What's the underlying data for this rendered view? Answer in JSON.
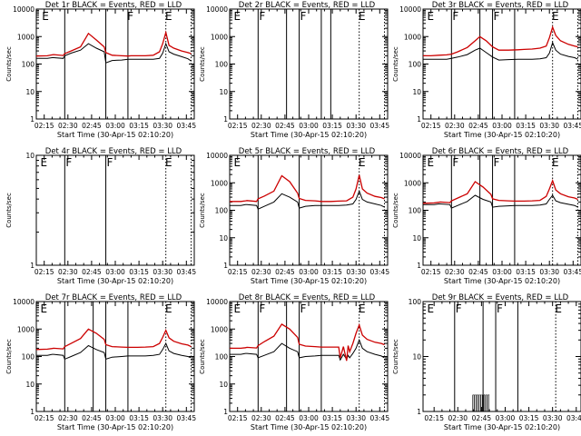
{
  "figure": {
    "background": "#ffffff",
    "grid_rows": 3,
    "grid_cols": 3
  },
  "colors": {
    "events": "#000000",
    "lld": "#cc0000",
    "axes": "#000000"
  },
  "common": {
    "ylabel": "Counts/sec",
    "x_tick_labels": [
      "02:15",
      "02:30",
      "02:45",
      "03:00",
      "03:15",
      "03:30",
      "03:45"
    ],
    "x_ticks_min": [
      15,
      30,
      45,
      60,
      75,
      90,
      105
    ],
    "xlim_min": [
      10,
      110
    ],
    "xlabel": "Start Time (30-Apr-15 02:10:20)"
  },
  "chart_data": [
    {
      "type": "line",
      "title": "Det 1r BLACK = Events, RED = LLD",
      "xlabel": "Start Time (30-Apr-15 02:10:20)",
      "ylabel": "Counts/sec",
      "yscale": "log",
      "ylim": [
        1,
        10000
      ],
      "y_tick_labels": [
        "1",
        "10",
        "100",
        "1000",
        "10000"
      ],
      "show_xlabel": false,
      "x_shift": 0,
      "solid_lines": [
        28,
        54,
        68
      ],
      "dotted_lines": [
        92,
        108
      ],
      "markers": [
        {
          "x": 13,
          "text": "E"
        },
        {
          "x": 67,
          "text": "F"
        },
        {
          "x": 91,
          "text": "E"
        }
      ],
      "series": [
        {
          "name": "Events",
          "x": [
            10,
            17,
            20,
            21,
            27,
            28,
            32,
            38,
            43,
            48,
            53,
            54,
            58,
            64,
            68,
            70,
            74,
            79,
            84,
            88,
            90,
            92,
            94,
            97,
            102,
            106,
            108
          ],
          "y": [
            160,
            160,
            170,
            170,
            160,
            200,
            250,
            320,
            550,
            380,
            280,
            110,
            135,
            140,
            150,
            150,
            150,
            150,
            150,
            160,
            250,
            550,
            280,
            230,
            185,
            155,
            130
          ]
        },
        {
          "name": "LLD",
          "x": [
            10,
            17,
            20,
            21,
            27,
            28,
            32,
            38,
            43,
            48,
            53,
            54,
            58,
            64,
            68,
            70,
            74,
            79,
            84,
            88,
            90,
            92,
            94,
            97,
            102,
            106,
            108
          ],
          "y": [
            195,
            200,
            215,
            220,
            205,
            240,
            300,
            420,
            1300,
            750,
            420,
            260,
            210,
            200,
            195,
            200,
            200,
            200,
            210,
            280,
            550,
            1400,
            480,
            380,
            300,
            260,
            240
          ]
        }
      ]
    },
    {
      "type": "line",
      "title": "Det 2r BLACK = Events, RED = LLD",
      "xlabel": "Start Time (30-Apr-15 02:10:20)",
      "ylabel": "Counts/sec",
      "yscale": "log",
      "ylim": [
        1,
        10000
      ],
      "y_tick_labels": [
        "1",
        "10",
        "100",
        "1000",
        "10000"
      ],
      "show_xlabel": false,
      "x_shift": 0,
      "solid_lines": [
        28,
        46,
        54,
        68,
        74
      ],
      "dotted_lines": [
        92,
        108
      ],
      "markers": [
        {
          "x": 12,
          "text": "E"
        },
        {
          "x": 28,
          "text": "F"
        },
        {
          "x": 54,
          "text": "F"
        },
        {
          "x": 91,
          "text": "E"
        }
      ],
      "series": []
    },
    {
      "type": "line",
      "title": "Det 3r BLACK = Events, RED = LLD",
      "xlabel": "Start Time (30-Apr-15 02:10:20)",
      "ylabel": "Counts/sec",
      "yscale": "log",
      "ylim": [
        1,
        10000
      ],
      "y_tick_labels": [
        "1",
        "10",
        "100",
        "1000",
        "10000"
      ],
      "show_xlabel": false,
      "x_shift": 0,
      "solid_lines": [
        28,
        46,
        54,
        68
      ],
      "dotted_lines": [
        92,
        108
      ],
      "markers": [
        {
          "x": 12,
          "text": "E"
        },
        {
          "x": 28,
          "text": "F"
        },
        {
          "x": 54,
          "text": "F"
        },
        {
          "x": 91,
          "text": "E"
        }
      ],
      "series": [
        {
          "name": "Events",
          "x": [
            10,
            15,
            20,
            25,
            28,
            32,
            38,
            43,
            46,
            50,
            54,
            58,
            64,
            70,
            74,
            79,
            84,
            88,
            90,
            92,
            94,
            97,
            102,
            106,
            108
          ],
          "y": [
            150,
            150,
            150,
            150,
            160,
            180,
            220,
            320,
            380,
            260,
            180,
            140,
            145,
            150,
            150,
            150,
            155,
            170,
            250,
            600,
            320,
            230,
            190,
            170,
            150
          ]
        },
        {
          "name": "LLD",
          "x": [
            10,
            15,
            20,
            25,
            28,
            32,
            38,
            43,
            46,
            50,
            54,
            58,
            64,
            70,
            74,
            79,
            84,
            88,
            90,
            92,
            94,
            97,
            102,
            106,
            108
          ],
          "y": [
            200,
            200,
            210,
            215,
            230,
            280,
            400,
            700,
            1000,
            700,
            420,
            320,
            320,
            330,
            340,
            350,
            380,
            450,
            900,
            2200,
            1100,
            700,
            520,
            450,
            420
          ]
        }
      ]
    },
    {
      "type": "line",
      "title": "Det 4r BLACK = Events, RED = LLD",
      "xlabel": "Start Time (30-Apr-15 02:10:20)",
      "ylabel": "Counts/sec",
      "yscale": "log",
      "ylim": [
        1,
        10
      ],
      "y_tick_labels": [
        "1",
        "10"
      ],
      "show_xlabel": false,
      "x_shift": 0,
      "solid_lines": [
        28,
        54
      ],
      "dotted_lines": [
        92,
        108
      ],
      "markers": [
        {
          "x": 12,
          "text": "E"
        },
        {
          "x": 28,
          "text": "F"
        },
        {
          "x": 54,
          "text": "F"
        },
        {
          "x": 91,
          "text": "E"
        }
      ],
      "series": []
    },
    {
      "type": "line",
      "title": "Det 5r BLACK = Events, RED = LLD",
      "xlabel": "Start Time (30-Apr-15 02:10:20)",
      "ylabel": "Counts/sec",
      "yscale": "log",
      "ylim": [
        1,
        10000
      ],
      "y_tick_labels": [
        "1",
        "10",
        "100",
        "1000",
        "10000"
      ],
      "show_xlabel": true,
      "x_shift": 0,
      "solid_lines": [
        28,
        54,
        68
      ],
      "dotted_lines": [
        92,
        108
      ],
      "markers": [
        {
          "x": 12,
          "text": "E"
        },
        {
          "x": 91,
          "text": "E"
        }
      ],
      "series": [
        {
          "name": "Events",
          "x": [
            10,
            17,
            20,
            21,
            27,
            28,
            32,
            38,
            43,
            48,
            53,
            54,
            58,
            64,
            68,
            70,
            74,
            79,
            84,
            88,
            90,
            92,
            94,
            97,
            102,
            106,
            108
          ],
          "y": [
            150,
            150,
            160,
            160,
            150,
            110,
            140,
            200,
            400,
            300,
            200,
            120,
            140,
            150,
            150,
            150,
            150,
            150,
            155,
            170,
            250,
            500,
            250,
            200,
            170,
            150,
            130
          ]
        },
        {
          "name": "LLD",
          "x": [
            10,
            17,
            20,
            21,
            27,
            28,
            32,
            38,
            43,
            48,
            53,
            54,
            58,
            64,
            68,
            70,
            74,
            79,
            84,
            88,
            90,
            92,
            94,
            97,
            102,
            106,
            108
          ],
          "y": [
            210,
            210,
            220,
            225,
            210,
            260,
            330,
            500,
            1800,
            1100,
            420,
            270,
            230,
            220,
            210,
            210,
            210,
            215,
            220,
            300,
            600,
            1900,
            600,
            420,
            320,
            290,
            260
          ]
        }
      ]
    },
    {
      "type": "line",
      "title": "Det 6r BLACK = Events, RED = LLD",
      "xlabel": "Start Time (30-Apr-15 02:10:20)",
      "ylabel": "Counts/sec",
      "yscale": "log",
      "ylim": [
        1,
        10000
      ],
      "y_tick_labels": [
        "1",
        "10",
        "100",
        "1000",
        "10000"
      ],
      "show_xlabel": true,
      "x_shift": 0,
      "solid_lines": [
        28,
        46,
        54,
        68
      ],
      "dotted_lines": [
        92,
        108
      ],
      "markers": [
        {
          "x": 12,
          "text": "E"
        },
        {
          "x": 28,
          "text": "F"
        },
        {
          "x": 54,
          "text": "F"
        },
        {
          "x": 91,
          "text": "E"
        }
      ],
      "series": [
        {
          "name": "Events",
          "x": [
            10,
            17,
            20,
            21,
            27,
            28,
            32,
            38,
            43,
            48,
            53,
            54,
            58,
            64,
            68,
            70,
            74,
            79,
            84,
            88,
            90,
            92,
            94,
            97,
            102,
            106,
            108
          ],
          "y": [
            160,
            160,
            170,
            170,
            160,
            120,
            150,
            210,
            350,
            250,
            200,
            130,
            140,
            145,
            150,
            150,
            150,
            150,
            155,
            170,
            250,
            350,
            220,
            190,
            165,
            150,
            130
          ]
        },
        {
          "name": "LLD",
          "x": [
            10,
            17,
            20,
            21,
            27,
            28,
            32,
            38,
            43,
            48,
            53,
            54,
            58,
            64,
            68,
            70,
            74,
            79,
            84,
            88,
            90,
            92,
            94,
            97,
            102,
            106,
            108
          ],
          "y": [
            180,
            185,
            195,
            200,
            190,
            220,
            280,
            400,
            1100,
            700,
            380,
            260,
            230,
            220,
            215,
            215,
            215,
            220,
            230,
            320,
            600,
            1200,
            550,
            400,
            310,
            280,
            250
          ]
        }
      ]
    },
    {
      "type": "line",
      "title": "Det 7r BLACK = Events, RED = LLD",
      "xlabel": "Start Time (30-Apr-15 02:10:20)",
      "ylabel": "Counts/sec",
      "yscale": "log",
      "ylim": [
        1,
        10000
      ],
      "y_tick_labels": [
        "1",
        "10",
        "100",
        "1000",
        "10000"
      ],
      "show_xlabel": true,
      "x_shift": 0,
      "solid_lines": [
        28,
        46,
        54,
        68
      ],
      "dotted_lines": [
        92,
        108
      ],
      "markers": [
        {
          "x": 12,
          "text": "E"
        },
        {
          "x": 91,
          "text": "E"
        }
      ],
      "series": [
        {
          "name": "Events",
          "x": [
            10,
            17,
            20,
            21,
            27,
            28,
            32,
            38,
            43,
            48,
            53,
            54,
            58,
            64,
            68,
            70,
            74,
            79,
            84,
            88,
            90,
            92,
            94,
            97,
            102,
            106,
            108
          ],
          "y": [
            110,
            110,
            120,
            120,
            110,
            80,
            100,
            140,
            250,
            180,
            140,
            80,
            95,
            100,
            105,
            105,
            105,
            105,
            110,
            120,
            180,
            300,
            160,
            130,
            110,
            100,
            90
          ]
        },
        {
          "name": "LLD",
          "x": [
            10,
            17,
            20,
            21,
            27,
            28,
            32,
            38,
            43,
            48,
            53,
            54,
            58,
            64,
            68,
            70,
            74,
            79,
            84,
            88,
            90,
            92,
            94,
            97,
            102,
            106,
            108
          ],
          "y": [
            180,
            185,
            195,
            200,
            190,
            230,
            300,
            450,
            1000,
            700,
            420,
            270,
            230,
            220,
            215,
            215,
            215,
            220,
            230,
            300,
            500,
            900,
            480,
            360,
            290,
            260,
            230
          ]
        }
      ]
    },
    {
      "type": "line",
      "title": "Det 8r BLACK = Events, RED = LLD",
      "xlabel": "Start Time (30-Apr-15 02:10:20)",
      "ylabel": "Counts/sec",
      "yscale": "log",
      "ylim": [
        1,
        10000
      ],
      "y_tick_labels": [
        "1",
        "10",
        "100",
        "1000",
        "10000"
      ],
      "show_xlabel": true,
      "x_shift": 0,
      "solid_lines": [
        28,
        46,
        54,
        68
      ],
      "dotted_lines": [
        92,
        108
      ],
      "markers": [
        {
          "x": 12,
          "text": "E"
        },
        {
          "x": 28,
          "text": "F"
        },
        {
          "x": 54,
          "text": "F"
        },
        {
          "x": 91,
          "text": "E"
        }
      ],
      "series": [
        {
          "name": "Events",
          "x": [
            10,
            17,
            20,
            21,
            27,
            28,
            32,
            38,
            43,
            48,
            53,
            54,
            58,
            64,
            68,
            70,
            74,
            79,
            80,
            82,
            84,
            85,
            86,
            88,
            90,
            92,
            94,
            97,
            102,
            106,
            108
          ],
          "y": [
            120,
            120,
            130,
            130,
            120,
            90,
            110,
            150,
            300,
            200,
            150,
            90,
            100,
            105,
            110,
            110,
            110,
            110,
            75,
            120,
            80,
            110,
            90,
            130,
            200,
            400,
            200,
            150,
            120,
            105,
            90
          ]
        },
        {
          "name": "LLD",
          "x": [
            10,
            17,
            20,
            21,
            27,
            28,
            32,
            38,
            43,
            48,
            53,
            54,
            58,
            64,
            68,
            70,
            74,
            79,
            80,
            82,
            84,
            85,
            86,
            88,
            90,
            92,
            94,
            97,
            102,
            106,
            108
          ],
          "y": [
            200,
            200,
            210,
            215,
            205,
            250,
            350,
            550,
            1500,
            1000,
            500,
            280,
            240,
            230,
            220,
            220,
            220,
            220,
            90,
            230,
            70,
            250,
            150,
            300,
            700,
            1400,
            600,
            420,
            330,
            300,
            270
          ]
        }
      ]
    },
    {
      "type": "line",
      "title": "Det 9r BLACK = Events, RED = LLD",
      "xlabel": "Start Time (30-Apr-15 02:10:20)",
      "ylabel": "Counts/sec",
      "yscale": "log",
      "ylim": [
        1,
        100
      ],
      "y_tick_labels": [
        "1",
        "10",
        "100"
      ],
      "show_xlabel": true,
      "x_shift": 2,
      "solid_lines": [
        30,
        48,
        56,
        70
      ],
      "dotted_lines": [
        94,
        110
      ],
      "markers": [
        {
          "x": 12,
          "text": "E"
        },
        {
          "x": 30,
          "text": "F"
        },
        {
          "x": 56,
          "text": "F"
        },
        {
          "x": 93,
          "text": "E"
        }
      ],
      "spikes": {
        "x_start": 41.5,
        "x_end": 51.5,
        "step": 1,
        "y": 2
      },
      "series": []
    }
  ]
}
